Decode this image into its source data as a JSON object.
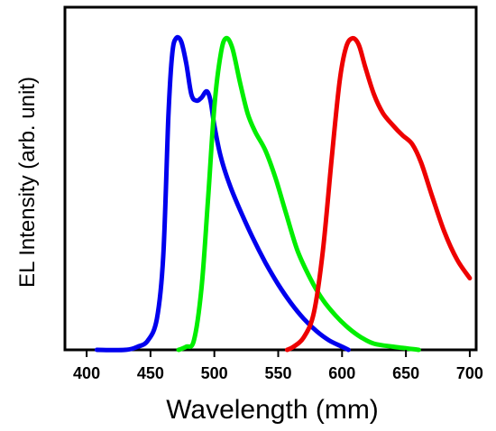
{
  "chart_data": {
    "type": "line",
    "title": "",
    "xlabel": "Wavelength (mm)",
    "ylabel": "EL Intensity (arb. unit)",
    "xlim": [
      383,
      705
    ],
    "ylim": [
      0,
      1.1
    ],
    "x_ticks": [
      400,
      450,
      500,
      550,
      600,
      650,
      700
    ],
    "x_tick_labels": [
      "400",
      "450",
      "500",
      "550",
      "600",
      "650",
      "700"
    ],
    "y_ticks": [],
    "grid": false,
    "legend": "none",
    "series": [
      {
        "color": "#0000ee",
        "points": [
          [
            408,
            0.0
          ],
          [
            430,
            0.0
          ],
          [
            440,
            0.01
          ],
          [
            448,
            0.03
          ],
          [
            455,
            0.1
          ],
          [
            460,
            0.3
          ],
          [
            464,
            0.75
          ],
          [
            467,
            0.95
          ],
          [
            470,
            1.0
          ],
          [
            474,
            0.99
          ],
          [
            478,
            0.92
          ],
          [
            482,
            0.82
          ],
          [
            486,
            0.8
          ],
          [
            490,
            0.81
          ],
          [
            494,
            0.83
          ],
          [
            497,
            0.8
          ],
          [
            500,
            0.72
          ],
          [
            505,
            0.62
          ],
          [
            512,
            0.53
          ],
          [
            520,
            0.45
          ],
          [
            530,
            0.36
          ],
          [
            540,
            0.28
          ],
          [
            550,
            0.21
          ],
          [
            560,
            0.15
          ],
          [
            570,
            0.1
          ],
          [
            580,
            0.06
          ],
          [
            590,
            0.03
          ],
          [
            600,
            0.01
          ],
          [
            605,
            0.0
          ]
        ]
      },
      {
        "color": "#00ee00",
        "points": [
          [
            472,
            0.0
          ],
          [
            478,
            0.01
          ],
          [
            484,
            0.03
          ],
          [
            490,
            0.2
          ],
          [
            495,
            0.48
          ],
          [
            500,
            0.78
          ],
          [
            505,
            0.95
          ],
          [
            509,
            1.0
          ],
          [
            514,
            0.97
          ],
          [
            520,
            0.86
          ],
          [
            526,
            0.76
          ],
          [
            532,
            0.7
          ],
          [
            540,
            0.64
          ],
          [
            548,
            0.55
          ],
          [
            556,
            0.44
          ],
          [
            565,
            0.32
          ],
          [
            575,
            0.23
          ],
          [
            585,
            0.16
          ],
          [
            595,
            0.11
          ],
          [
            605,
            0.07
          ],
          [
            615,
            0.04
          ],
          [
            625,
            0.02
          ],
          [
            640,
            0.01
          ],
          [
            660,
            0.0
          ]
        ]
      },
      {
        "color": "#ee0000",
        "points": [
          [
            557,
            0.0
          ],
          [
            562,
            0.01
          ],
          [
            570,
            0.04
          ],
          [
            578,
            0.12
          ],
          [
            585,
            0.32
          ],
          [
            592,
            0.62
          ],
          [
            598,
            0.86
          ],
          [
            603,
            0.97
          ],
          [
            608,
            1.0
          ],
          [
            613,
            0.98
          ],
          [
            618,
            0.91
          ],
          [
            625,
            0.82
          ],
          [
            632,
            0.76
          ],
          [
            640,
            0.72
          ],
          [
            647,
            0.69
          ],
          [
            655,
            0.66
          ],
          [
            662,
            0.6
          ],
          [
            670,
            0.5
          ],
          [
            680,
            0.38
          ],
          [
            690,
            0.29
          ],
          [
            700,
            0.23
          ]
        ]
      }
    ]
  }
}
